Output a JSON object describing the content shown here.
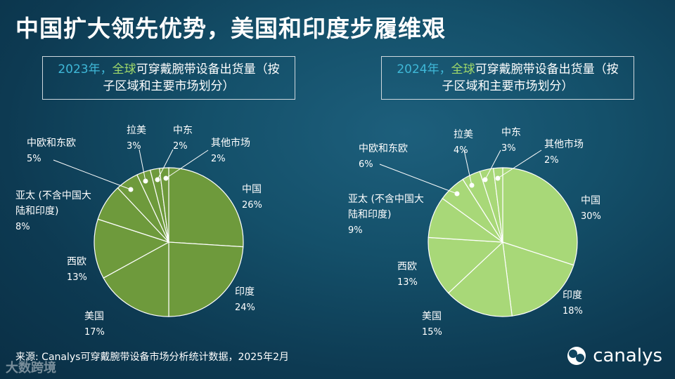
{
  "title": "中国扩大领先优势，美国和印度步履维艰",
  "source": "来源: Canalys可穿戴腕带设备市场分析统计数据，2025年2月",
  "watermark": "大数跨境",
  "brand": "canalys",
  "colors": {
    "pie_2023": "#6e9a3c",
    "pie_2024": "#a8d878",
    "title_year": "#3fb8d8",
    "title_region": "#9fd86a"
  },
  "chart_data": [
    {
      "type": "pie",
      "title": "2023年，全球可穿戴腕带设备出货量（按子区域和主要市场划分）",
      "title_parts": {
        "year": "2023年，",
        "region": "全球",
        "rest_line1": "可穿戴腕带设备出货量（按",
        "rest_line2": "子区域和主要市场划分）"
      },
      "slices": [
        {
          "label": "中国",
          "value": 26
        },
        {
          "label": "印度",
          "value": 24
        },
        {
          "label": "美国",
          "value": 17
        },
        {
          "label": "西欧",
          "value": 13
        },
        {
          "label": "亚太 (不含中国大陆和印度)",
          "value": 8
        },
        {
          "label": "中欧和东欧",
          "value": 5
        },
        {
          "label": "拉美",
          "value": 3
        },
        {
          "label": "中东",
          "value": 2
        },
        {
          "label": "其他市场",
          "value": 2
        }
      ]
    },
    {
      "type": "pie",
      "title": "2024年，全球可穿戴腕带设备出货量（按子区域和主要市场划分）",
      "title_parts": {
        "year": "2024年，",
        "region": "全球",
        "rest_line1": "可穿戴腕带设备出货量（按",
        "rest_line2": "子区域和主要市场划分）"
      },
      "slices": [
        {
          "label": "中国",
          "value": 30
        },
        {
          "label": "印度",
          "value": 18
        },
        {
          "label": "美国",
          "value": 15
        },
        {
          "label": "西欧",
          "value": 13
        },
        {
          "label": "亚太 (不含中国大陆和印度)",
          "value": 9
        },
        {
          "label": "中欧和东欧",
          "value": 6
        },
        {
          "label": "拉美",
          "value": 4
        },
        {
          "label": "中东",
          "value": 3
        },
        {
          "label": "其他市场",
          "value": 2
        }
      ]
    }
  ]
}
